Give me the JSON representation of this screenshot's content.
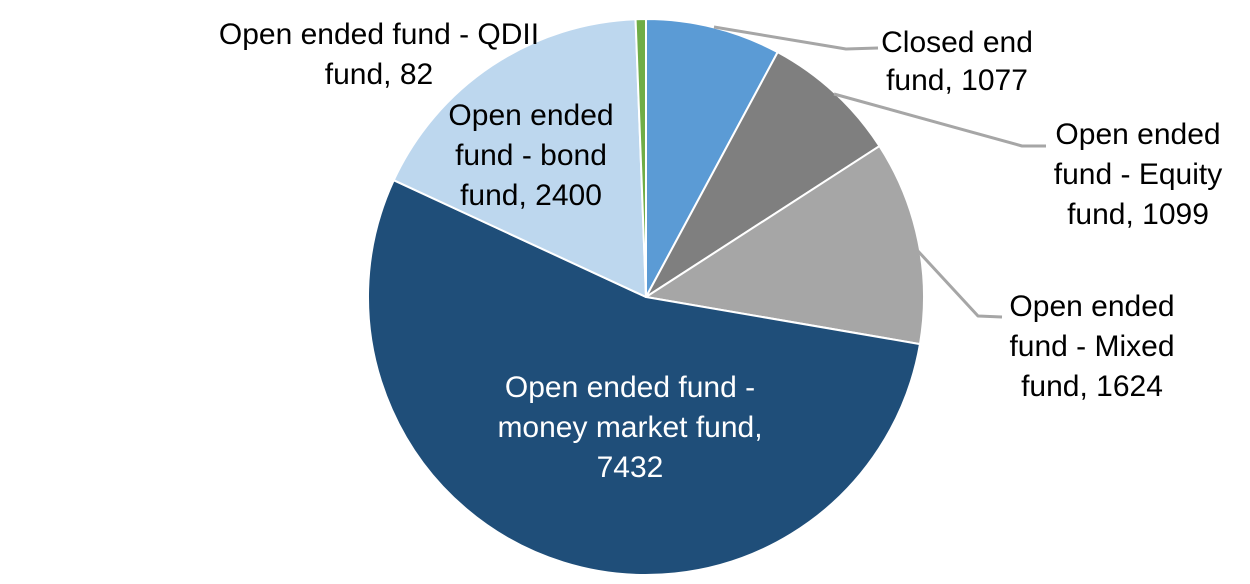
{
  "chart_data": {
    "type": "pie",
    "title": "",
    "total": 13714,
    "start_angle_deg": 0,
    "direction": "clockwise",
    "background_color": "#ffffff",
    "slice_border_color": "#ffffff",
    "leader_line_color": "#a6a6a6",
    "slices": [
      {
        "name": "Closed end fund",
        "value": 1077,
        "color": "#5b9bd5",
        "label_lines": [
          "Closed end",
          "fund, 1077"
        ],
        "label_color": "#000000",
        "label_position": "outside",
        "has_leader_line": true
      },
      {
        "name": "Open ended fund - Equity fund",
        "value": 1099,
        "color": "#7f7f7f",
        "label_lines": [
          "Open ended",
          "fund - Equity",
          "fund, 1099"
        ],
        "label_color": "#000000",
        "label_position": "outside",
        "has_leader_line": true
      },
      {
        "name": "Open ended fund - Mixed fund",
        "value": 1624,
        "color": "#a6a6a6",
        "label_lines": [
          "Open ended",
          "fund - Mixed",
          "fund, 1624"
        ],
        "label_color": "#000000",
        "label_position": "outside",
        "has_leader_line": true
      },
      {
        "name": "Open ended fund - money market fund",
        "value": 7432,
        "color": "#1f4e79",
        "label_lines": [
          "Open ended fund -",
          "money market fund,",
          "7432"
        ],
        "label_color": "#ffffff",
        "label_position": "inside",
        "has_leader_line": false
      },
      {
        "name": "Open ended fund - bond fund",
        "value": 2400,
        "color": "#bdd7ee",
        "label_lines": [
          "Open ended",
          "fund - bond",
          "fund, 2400"
        ],
        "label_color": "#000000",
        "label_position": "outside",
        "has_leader_line": false
      },
      {
        "name": "Open ended fund - QDII fund",
        "value": 82,
        "color": "#70ad47",
        "label_lines": [
          "Open ended fund - QDII",
          "fund, 82"
        ],
        "label_color": "#000000",
        "label_position": "outside",
        "has_leader_line": false
      }
    ]
  }
}
